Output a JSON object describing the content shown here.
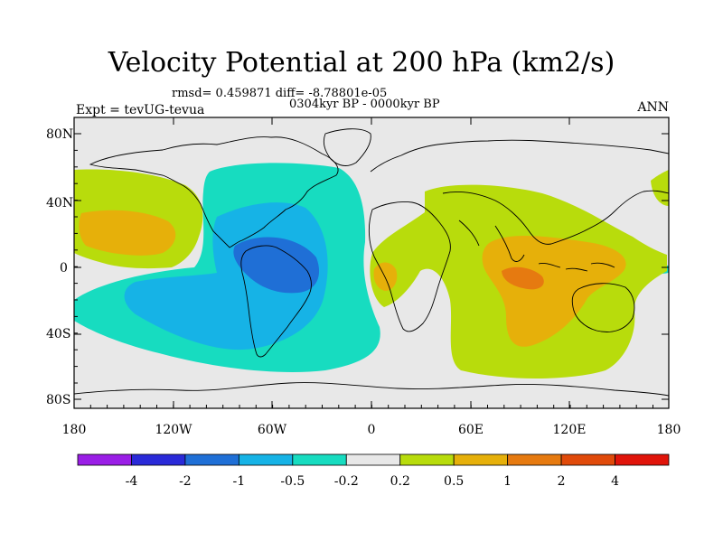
{
  "title": "Velocity Potential at 200 hPa (km2/s)",
  "stats": "rmsd= 0.459871  diff= -8.78801e-05",
  "period": "0304kyr BP - 0000kyr BP",
  "experiment": "Expt = tevUG-tevua",
  "season": "ANN",
  "axes": {
    "lat_labels": [
      "80N",
      "40N",
      "0",
      "40S",
      "80S"
    ],
    "lon_labels": [
      "180",
      "120W",
      "60W",
      "0",
      "60E",
      "120E",
      "180"
    ]
  },
  "colorbar": {
    "labels": [
      "-4",
      "-2",
      "-1",
      "-0.5",
      "-0.2",
      "0.2",
      "0.5",
      "1",
      "2",
      "4"
    ],
    "colors": [
      "#9a1ee6",
      "#2a2ad8",
      "#1f6fd6",
      "#16b3e6",
      "#17dcc0",
      "#e8e8e8",
      "#b8dc0c",
      "#e6b00a",
      "#e67a10",
      "#e04a0a",
      "#e0140a"
    ]
  },
  "colors": {
    "land_bg": "#e8e8e8",
    "neg1": "#17dcc0",
    "neg2": "#16b3e6",
    "neg3": "#1f6fd6",
    "pos1": "#b8dc0c",
    "pos2": "#e6b00a",
    "pos3": "#e67a10"
  }
}
